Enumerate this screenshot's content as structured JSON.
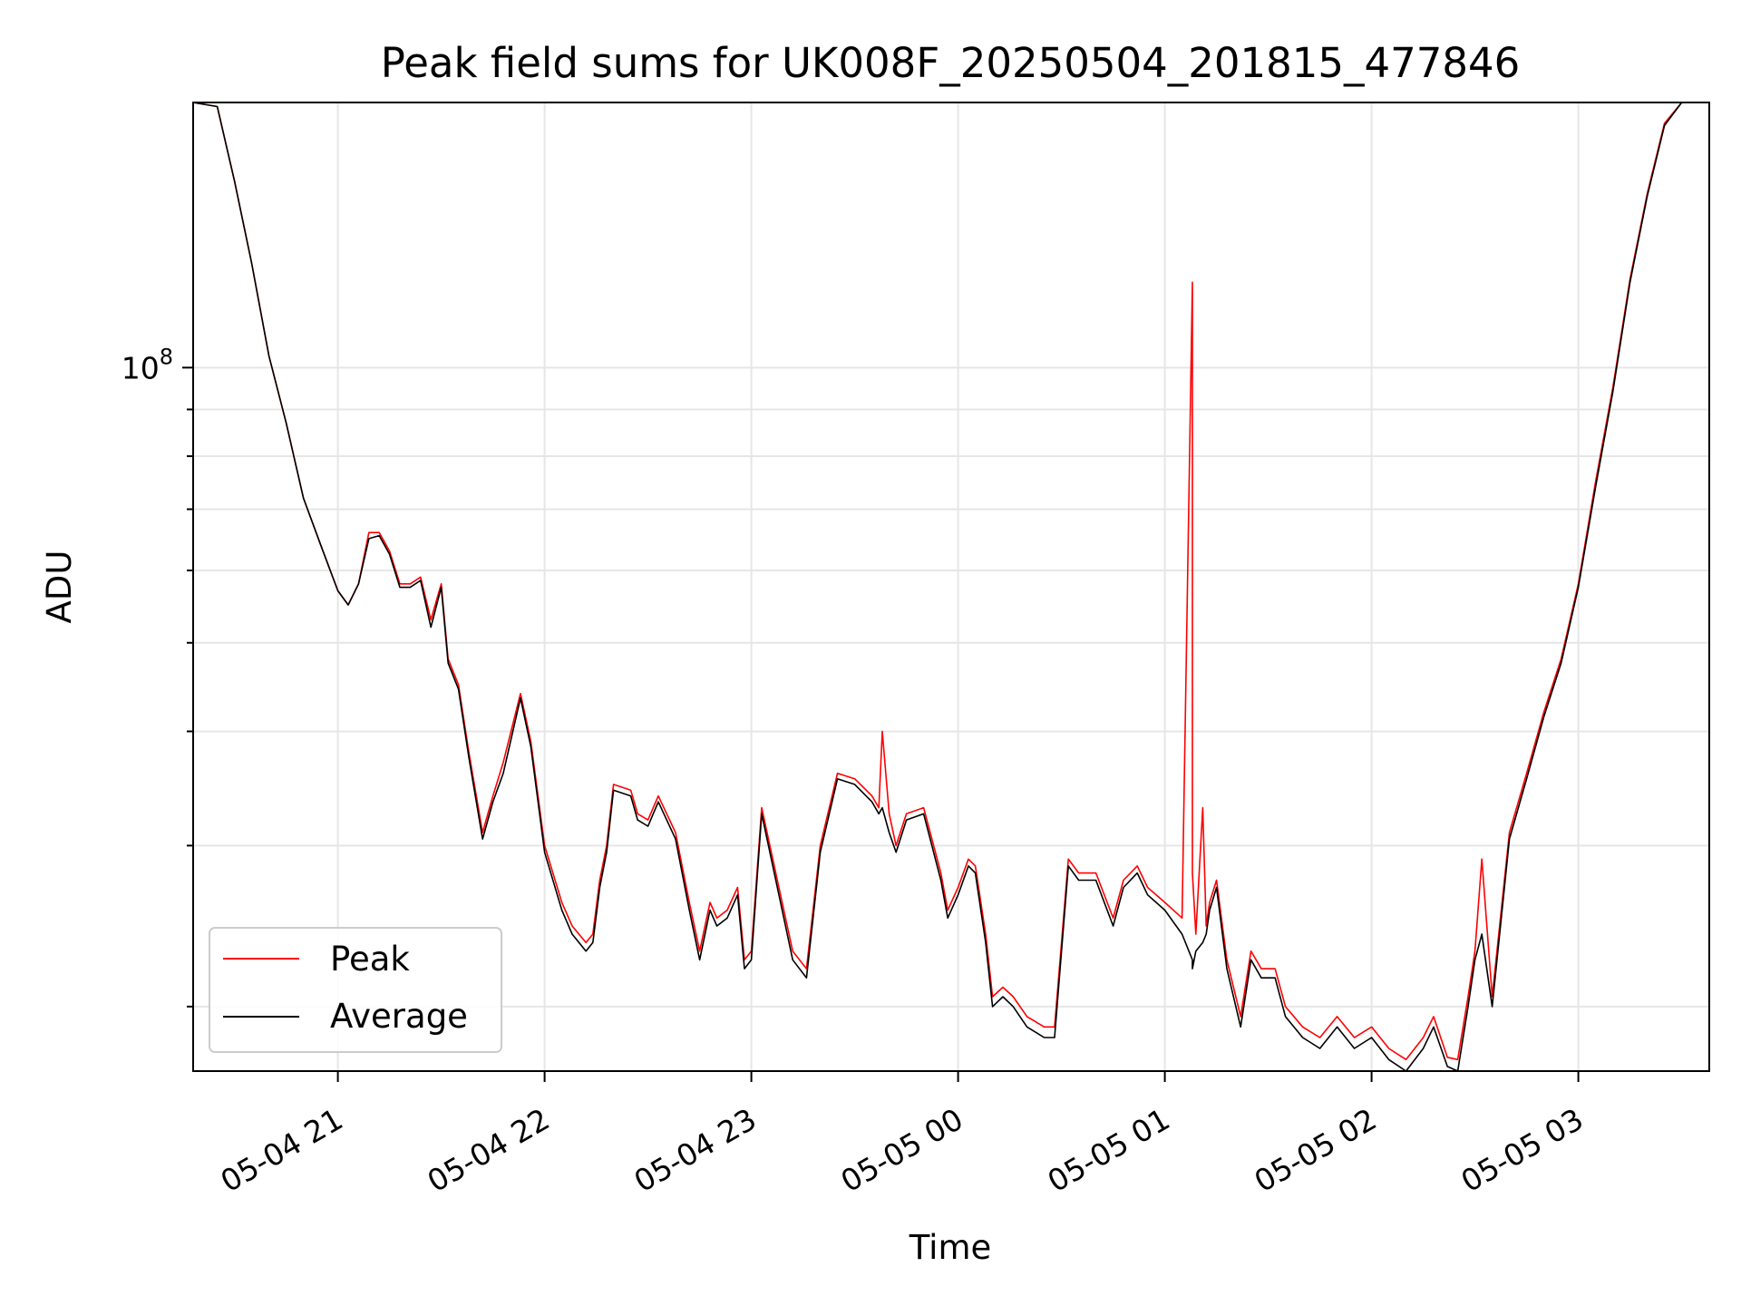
{
  "chart_data": {
    "type": "line",
    "title": "Peak field sums for UK008F_20250504_201815_477846",
    "xlabel": "Time",
    "ylabel": "ADU",
    "y_scale": "log",
    "grid": true,
    "legend_position": "lower-left",
    "x_tick_labels": [
      "05-04 21",
      "05-04 22",
      "05-04 23",
      "05-05 00",
      "05-05 01",
      "05-05 02",
      "05-05 03"
    ],
    "x_ticks": [
      "2025-05-04T21:00",
      "2025-05-04T22:00",
      "2025-05-04T23:00",
      "2025-05-05T00:00",
      "2025-05-05T01:00",
      "2025-05-05T02:00",
      "2025-05-05T03:00"
    ],
    "xlim": [
      "2025-05-04T20:18",
      "2025-05-05T03:38"
    ],
    "y_tick_label_base": "10",
    "y_tick_label_exp": "8",
    "y_tick_value": 100000000,
    "ylim": [
      17000000,
      195000000
    ],
    "series": [
      {
        "name": "Peak",
        "color": "#ff0000",
        "x": [
          "2025-05-04T20:18",
          "2025-05-04T20:25",
          "2025-05-04T20:30",
          "2025-05-04T20:35",
          "2025-05-04T20:40",
          "2025-05-04T20:45",
          "2025-05-04T20:50",
          "2025-05-04T20:55",
          "2025-05-04T21:00",
          "2025-05-04T21:03",
          "2025-05-04T21:06",
          "2025-05-04T21:09",
          "2025-05-04T21:12",
          "2025-05-04T21:15",
          "2025-05-04T21:18",
          "2025-05-04T21:21",
          "2025-05-04T21:24",
          "2025-05-04T21:27",
          "2025-05-04T21:30",
          "2025-05-04T21:32",
          "2025-05-04T21:35",
          "2025-05-04T21:38",
          "2025-05-04T21:42",
          "2025-05-04T21:45",
          "2025-05-04T21:48",
          "2025-05-04T21:53",
          "2025-05-04T21:56",
          "2025-05-04T22:00",
          "2025-05-04T22:05",
          "2025-05-04T22:08",
          "2025-05-04T22:12",
          "2025-05-04T22:14",
          "2025-05-04T22:16",
          "2025-05-04T22:18",
          "2025-05-04T22:20",
          "2025-05-04T22:25",
          "2025-05-04T22:27",
          "2025-05-04T22:30",
          "2025-05-04T22:33",
          "2025-05-04T22:38",
          "2025-05-04T22:42",
          "2025-05-04T22:45",
          "2025-05-04T22:48",
          "2025-05-04T22:50",
          "2025-05-04T22:53",
          "2025-05-04T22:56",
          "2025-05-04T22:58",
          "2025-05-04T23:00",
          "2025-05-04T23:03",
          "2025-05-04T23:08",
          "2025-05-04T23:12",
          "2025-05-04T23:16",
          "2025-05-04T23:20",
          "2025-05-04T23:25",
          "2025-05-04T23:30",
          "2025-05-04T23:35",
          "2025-05-04T23:37",
          "2025-05-04T23:38",
          "2025-05-04T23:40",
          "2025-05-04T23:42",
          "2025-05-04T23:45",
          "2025-05-04T23:50",
          "2025-05-04T23:55",
          "2025-05-04T23:57",
          "2025-05-05T00:00",
          "2025-05-05T00:03",
          "2025-05-05T00:05",
          "2025-05-05T00:08",
          "2025-05-05T00:10",
          "2025-05-05T00:13",
          "2025-05-05T00:16",
          "2025-05-05T00:20",
          "2025-05-05T00:25",
          "2025-05-05T00:28",
          "2025-05-05T00:32",
          "2025-05-05T00:35",
          "2025-05-05T00:40",
          "2025-05-05T00:45",
          "2025-05-05T00:48",
          "2025-05-05T00:52",
          "2025-05-05T00:55",
          "2025-05-05T01:00",
          "2025-05-05T01:05",
          "2025-05-05T01:08",
          "2025-05-05T01:08",
          "2025-05-05T01:09",
          "2025-05-05T01:11",
          "2025-05-05T01:12",
          "2025-05-05T01:13",
          "2025-05-05T01:15",
          "2025-05-05T01:18",
          "2025-05-05T01:22",
          "2025-05-05T01:25",
          "2025-05-05T01:28",
          "2025-05-05T01:32",
          "2025-05-05T01:35",
          "2025-05-05T01:40",
          "2025-05-05T01:45",
          "2025-05-05T01:50",
          "2025-05-05T01:55",
          "2025-05-05T02:00",
          "2025-05-05T02:05",
          "2025-05-05T02:10",
          "2025-05-05T02:15",
          "2025-05-05T02:18",
          "2025-05-05T02:22",
          "2025-05-05T02:25",
          "2025-05-05T02:28",
          "2025-05-05T02:30",
          "2025-05-05T02:32",
          "2025-05-05T02:35",
          "2025-05-05T02:40",
          "2025-05-05T02:45",
          "2025-05-05T02:50",
          "2025-05-05T02:55",
          "2025-05-05T03:00",
          "2025-05-05T03:05",
          "2025-05-05T03:10",
          "2025-05-05T03:15",
          "2025-05-05T03:20",
          "2025-05-05T03:25",
          "2025-05-05T03:30",
          "2025-05-05T03:38"
        ],
        "y": [
          195000000,
          193000000,
          160000000,
          130000000,
          103000000,
          87000000,
          72000000,
          64000000,
          57000000,
          55000000,
          58000000,
          66000000,
          66000000,
          63000000,
          58000000,
          58000000,
          59000000,
          53000000,
          58000000,
          48000000,
          45000000,
          38000000,
          31000000,
          34000000,
          37000000,
          44000000,
          39000000,
          30000000,
          26000000,
          24500000,
          23500000,
          24000000,
          27500000,
          30000000,
          35000000,
          34500000,
          32500000,
          32000000,
          34000000,
          31000000,
          26000000,
          23000000,
          26000000,
          25000000,
          25500000,
          27000000,
          22500000,
          23000000,
          33000000,
          27000000,
          23000000,
          22000000,
          30000000,
          36000000,
          35500000,
          34000000,
          33000000,
          40000000,
          32500000,
          30000000,
          32500000,
          33000000,
          28000000,
          25500000,
          27000000,
          29000000,
          28500000,
          24000000,
          20500000,
          21000000,
          20500000,
          19500000,
          19000000,
          19000000,
          29000000,
          28000000,
          28000000,
          25000000,
          27500000,
          28500000,
          27000000,
          26000000,
          25000000,
          124000000,
          28000000,
          24000000,
          33000000,
          24500000,
          26000000,
          27500000,
          22500000,
          19500000,
          23000000,
          22000000,
          22000000,
          20000000,
          19000000,
          18500000,
          19500000,
          18500000,
          19000000,
          18000000,
          17500000,
          18500000,
          19500000,
          17600000,
          17500000,
          20500000,
          23000000,
          29000000,
          20500000,
          31000000,
          36000000,
          42000000,
          48000000,
          58000000,
          75000000,
          95000000,
          125000000,
          155000000,
          185000000,
          195000000,
          195000000
        ]
      },
      {
        "name": "Average",
        "color": "#000000",
        "x": [
          "2025-05-04T20:18",
          "2025-05-04T20:25",
          "2025-05-04T20:30",
          "2025-05-04T20:35",
          "2025-05-04T20:40",
          "2025-05-04T20:45",
          "2025-05-04T20:50",
          "2025-05-04T20:55",
          "2025-05-04T21:00",
          "2025-05-04T21:03",
          "2025-05-04T21:06",
          "2025-05-04T21:09",
          "2025-05-04T21:12",
          "2025-05-04T21:15",
          "2025-05-04T21:18",
          "2025-05-04T21:21",
          "2025-05-04T21:24",
          "2025-05-04T21:27",
          "2025-05-04T21:30",
          "2025-05-04T21:32",
          "2025-05-04T21:35",
          "2025-05-04T21:38",
          "2025-05-04T21:42",
          "2025-05-04T21:45",
          "2025-05-04T21:48",
          "2025-05-04T21:53",
          "2025-05-04T21:56",
          "2025-05-04T22:00",
          "2025-05-04T22:05",
          "2025-05-04T22:08",
          "2025-05-04T22:12",
          "2025-05-04T22:14",
          "2025-05-04T22:16",
          "2025-05-04T22:18",
          "2025-05-04T22:20",
          "2025-05-04T22:25",
          "2025-05-04T22:27",
          "2025-05-04T22:30",
          "2025-05-04T22:33",
          "2025-05-04T22:38",
          "2025-05-04T22:42",
          "2025-05-04T22:45",
          "2025-05-04T22:48",
          "2025-05-04T22:50",
          "2025-05-04T22:53",
          "2025-05-04T22:56",
          "2025-05-04T22:58",
          "2025-05-04T23:00",
          "2025-05-04T23:03",
          "2025-05-04T23:08",
          "2025-05-04T23:12",
          "2025-05-04T23:16",
          "2025-05-04T23:20",
          "2025-05-04T23:25",
          "2025-05-04T23:30",
          "2025-05-04T23:35",
          "2025-05-04T23:37",
          "2025-05-04T23:38",
          "2025-05-04T23:40",
          "2025-05-04T23:42",
          "2025-05-04T23:45",
          "2025-05-04T23:50",
          "2025-05-04T23:55",
          "2025-05-04T23:57",
          "2025-05-05T00:00",
          "2025-05-05T00:03",
          "2025-05-05T00:05",
          "2025-05-05T00:08",
          "2025-05-05T00:10",
          "2025-05-05T00:13",
          "2025-05-05T00:16",
          "2025-05-05T00:20",
          "2025-05-05T00:25",
          "2025-05-05T00:28",
          "2025-05-05T00:32",
          "2025-05-05T00:35",
          "2025-05-05T00:40",
          "2025-05-05T00:45",
          "2025-05-05T00:48",
          "2025-05-05T00:52",
          "2025-05-05T00:55",
          "2025-05-05T01:00",
          "2025-05-05T01:05",
          "2025-05-05T01:08",
          "2025-05-05T01:08",
          "2025-05-05T01:09",
          "2025-05-05T01:11",
          "2025-05-05T01:12",
          "2025-05-05T01:13",
          "2025-05-05T01:15",
          "2025-05-05T01:18",
          "2025-05-05T01:22",
          "2025-05-05T01:25",
          "2025-05-05T01:28",
          "2025-05-05T01:32",
          "2025-05-05T01:35",
          "2025-05-05T01:40",
          "2025-05-05T01:45",
          "2025-05-05T01:50",
          "2025-05-05T01:55",
          "2025-05-05T02:00",
          "2025-05-05T02:05",
          "2025-05-05T02:10",
          "2025-05-05T02:15",
          "2025-05-05T02:18",
          "2025-05-05T02:22",
          "2025-05-05T02:25",
          "2025-05-05T02:28",
          "2025-05-05T02:30",
          "2025-05-05T02:32",
          "2025-05-05T02:35",
          "2025-05-05T02:40",
          "2025-05-05T02:45",
          "2025-05-05T02:50",
          "2025-05-05T02:55",
          "2025-05-05T03:00",
          "2025-05-05T03:05",
          "2025-05-05T03:10",
          "2025-05-05T03:15",
          "2025-05-05T03:20",
          "2025-05-05T03:25",
          "2025-05-05T03:30",
          "2025-05-05T03:38"
        ],
        "y": [
          195000000,
          193000000,
          160000000,
          130000000,
          103000000,
          87000000,
          72000000,
          64000000,
          57000000,
          55000000,
          58000000,
          65000000,
          65500000,
          62500000,
          57500000,
          57500000,
          58500000,
          52000000,
          57500000,
          47500000,
          44500000,
          37500000,
          30500000,
          33500000,
          36000000,
          43500000,
          38500000,
          29500000,
          25500000,
          24000000,
          23000000,
          23500000,
          27000000,
          29500000,
          34500000,
          34000000,
          32000000,
          31500000,
          33500000,
          30500000,
          25500000,
          22500000,
          25500000,
          24500000,
          25000000,
          26500000,
          22000000,
          22500000,
          32500000,
          26500000,
          22500000,
          21500000,
          29500000,
          35500000,
          35000000,
          33500000,
          32500000,
          33000000,
          31000000,
          29500000,
          32000000,
          32500000,
          27500000,
          25000000,
          26500000,
          28500000,
          28000000,
          23500000,
          20000000,
          20500000,
          20000000,
          19000000,
          18500000,
          18500000,
          28500000,
          27500000,
          27500000,
          24500000,
          27000000,
          28000000,
          26500000,
          25500000,
          24000000,
          22500000,
          22000000,
          23000000,
          23500000,
          24000000,
          25500000,
          27000000,
          22000000,
          19000000,
          22500000,
          21500000,
          21500000,
          19500000,
          18500000,
          18000000,
          19000000,
          18000000,
          18500000,
          17500000,
          17000000,
          18000000,
          19000000,
          17200000,
          17000000,
          20000000,
          22500000,
          24000000,
          20000000,
          30500000,
          35500000,
          41500000,
          47500000,
          57500000,
          74000000,
          94000000,
          124000000,
          154000000,
          184000000,
          195000000,
          195000000
        ]
      }
    ]
  }
}
